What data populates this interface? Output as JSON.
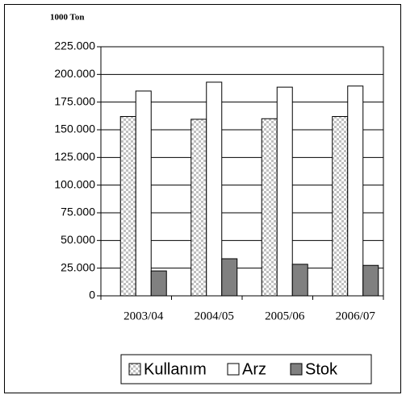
{
  "chart_data": {
    "type": "bar",
    "y_axis_label": "1000 Ton",
    "categories": [
      "2003/04",
      "2004/05",
      "2005/06",
      "2006/07"
    ],
    "series": [
      {
        "name": "Kullanım",
        "color": "#c0c0c0",
        "values": [
          162000,
          159500,
          160000,
          162000
        ]
      },
      {
        "name": "Arz",
        "color": "#ffffff",
        "values": [
          185000,
          193000,
          188500,
          189500
        ]
      },
      {
        "name": "Stok",
        "color": "#808080",
        "values": [
          22500,
          33500,
          28500,
          27500
        ]
      }
    ],
    "ylim": [
      0,
      225000
    ],
    "yticks": [
      0,
      {
        "value": 25000,
        "label": "25.000"
      },
      {
        "value": 50000,
        "label": "50.000"
      },
      {
        "value": 75000,
        "label": "75.000"
      },
      {
        "value": 100000,
        "label": "100.000"
      },
      {
        "value": 125000,
        "label": "125.000"
      },
      {
        "value": 150000,
        "label": "150.000"
      },
      {
        "value": 175000,
        "label": "175.000"
      },
      {
        "value": 200000,
        "label": "200.000"
      },
      {
        "value": 225000,
        "label": "225.000"
      }
    ],
    "grid": true,
    "legend": "bottom"
  }
}
